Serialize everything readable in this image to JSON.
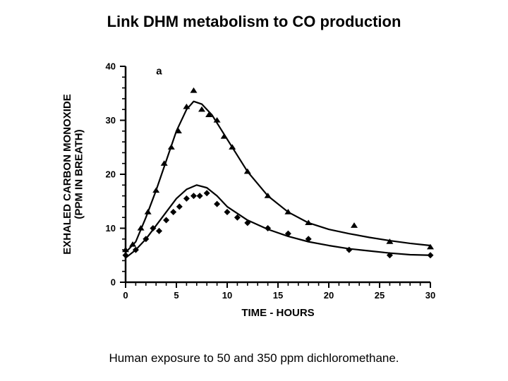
{
  "title": "Link DHM metabolism to CO production",
  "title_fontsize": 22,
  "caption": "Human exposure to 50 and 350 ppm dichloromethane.",
  "caption_fontsize": 17,
  "chart": {
    "type": "scatter",
    "panel_label": "a",
    "panel_label_fontsize": 15,
    "xlabel": "TIME - HOURS",
    "ylabel": "EXHALED CARBON MONOXIDE\n(PPM IN BREATH)",
    "label_fontsize": 15,
    "tick_fontsize": 13,
    "xlim": [
      0,
      30
    ],
    "ylim": [
      0,
      40
    ],
    "xtick_step": 5,
    "ytick_step": 10,
    "xticks_minor": 1,
    "yticks_minor": 2,
    "background_color": "#ffffff",
    "axis_color": "#000000",
    "axis_linewidth": 2.5,
    "tick_length_major": 8,
    "tick_length_minor": 5,
    "tick_width": 2,
    "series": [
      {
        "name": "350 ppm",
        "marker": "triangle",
        "marker_size": 10,
        "marker_color": "#000000",
        "line_color": "#000000",
        "line_width": 2.2,
        "points": [
          [
            0.0,
            6.0
          ],
          [
            0.7,
            7.0
          ],
          [
            1.5,
            10.0
          ],
          [
            2.2,
            13.0
          ],
          [
            3.0,
            17.0
          ],
          [
            3.8,
            22.0
          ],
          [
            4.5,
            25.0
          ],
          [
            5.2,
            28.0
          ],
          [
            6.0,
            32.5
          ],
          [
            6.7,
            35.5
          ],
          [
            7.5,
            32.0
          ],
          [
            8.2,
            31.0
          ],
          [
            9.0,
            30.0
          ],
          [
            9.7,
            27.0
          ],
          [
            10.5,
            25.0
          ],
          [
            12.0,
            20.5
          ],
          [
            14.0,
            16.0
          ],
          [
            16.0,
            13.0
          ],
          [
            18.0,
            11.0
          ],
          [
            22.5,
            10.5
          ],
          [
            26.0,
            7.5
          ],
          [
            30.0,
            6.5
          ]
        ],
        "curve": [
          [
            0.0,
            5.5
          ],
          [
            1.0,
            7.5
          ],
          [
            2.0,
            12.0
          ],
          [
            3.0,
            17.0
          ],
          [
            4.0,
            22.5
          ],
          [
            5.0,
            28.0
          ],
          [
            6.0,
            32.0
          ],
          [
            6.7,
            33.5
          ],
          [
            7.5,
            33.0
          ],
          [
            8.5,
            31.0
          ],
          [
            10.0,
            26.5
          ],
          [
            12.0,
            20.5
          ],
          [
            14.0,
            16.0
          ],
          [
            16.0,
            13.0
          ],
          [
            18.0,
            11.0
          ],
          [
            20.0,
            9.8
          ],
          [
            22.0,
            9.0
          ],
          [
            24.0,
            8.3
          ],
          [
            26.0,
            7.7
          ],
          [
            28.0,
            7.2
          ],
          [
            30.0,
            6.8
          ]
        ]
      },
      {
        "name": "50 ppm",
        "marker": "diamond",
        "marker_size": 9,
        "marker_color": "#000000",
        "line_color": "#000000",
        "line_width": 2.2,
        "points": [
          [
            0.0,
            5.0
          ],
          [
            1.0,
            6.0
          ],
          [
            2.0,
            8.0
          ],
          [
            2.7,
            10.0
          ],
          [
            3.3,
            9.5
          ],
          [
            4.0,
            11.5
          ],
          [
            4.7,
            13.0
          ],
          [
            5.3,
            14.0
          ],
          [
            6.0,
            15.5
          ],
          [
            6.7,
            16.0
          ],
          [
            7.3,
            16.0
          ],
          [
            8.0,
            16.5
          ],
          [
            9.0,
            14.5
          ],
          [
            10.0,
            13.0
          ],
          [
            11.0,
            12.0
          ],
          [
            12.0,
            11.0
          ],
          [
            14.0,
            10.0
          ],
          [
            16.0,
            9.0
          ],
          [
            18.0,
            8.0
          ],
          [
            22.0,
            6.0
          ],
          [
            26.0,
            5.0
          ],
          [
            30.0,
            5.0
          ]
        ],
        "curve": [
          [
            0.0,
            4.5
          ],
          [
            1.0,
            6.0
          ],
          [
            2.0,
            8.0
          ],
          [
            3.0,
            10.5
          ],
          [
            4.0,
            13.0
          ],
          [
            5.0,
            15.5
          ],
          [
            6.0,
            17.2
          ],
          [
            7.0,
            18.0
          ],
          [
            8.0,
            17.5
          ],
          [
            9.0,
            16.0
          ],
          [
            10.0,
            14.0
          ],
          [
            12.0,
            11.5
          ],
          [
            14.0,
            9.8
          ],
          [
            16.0,
            8.5
          ],
          [
            18.0,
            7.5
          ],
          [
            20.0,
            6.8
          ],
          [
            22.0,
            6.2
          ],
          [
            24.0,
            5.8
          ],
          [
            26.0,
            5.4
          ],
          [
            28.0,
            5.1
          ],
          [
            30.0,
            5.0
          ]
        ]
      }
    ]
  }
}
